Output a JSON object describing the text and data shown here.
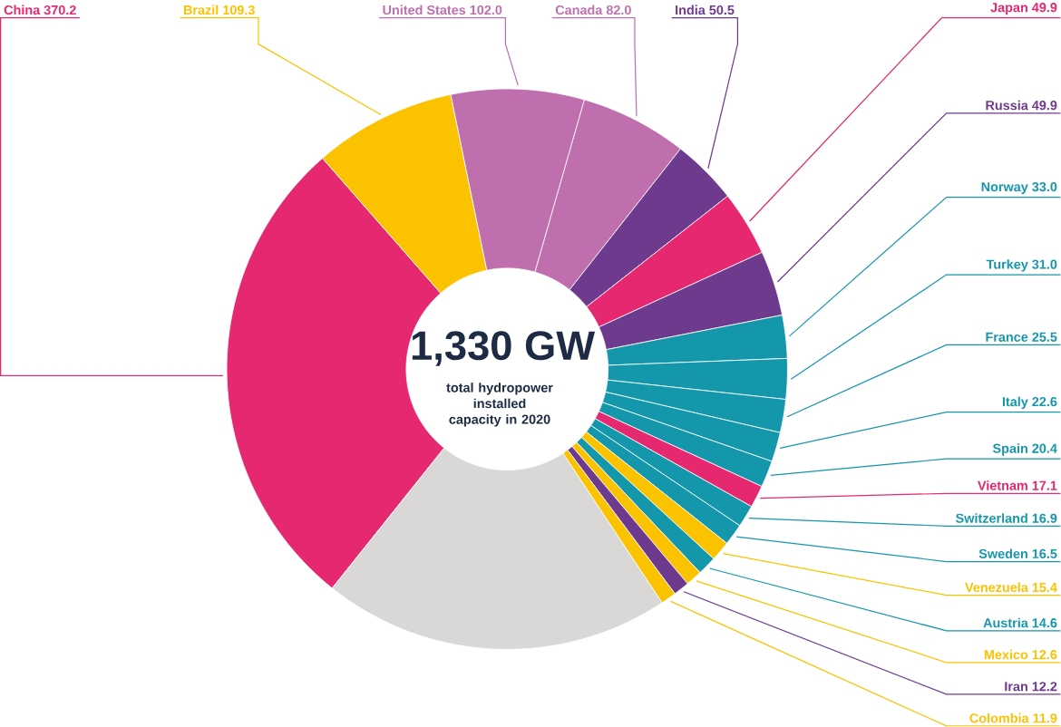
{
  "chart_data": {
    "type": "donut",
    "title": "1,330 GW",
    "subtitle": "total hydropower installed capacity in 2020",
    "categories": [
      "China",
      "Brazil",
      "United States",
      "Canada",
      "India",
      "Japan",
      "Russia",
      "Norway",
      "Turkey",
      "France",
      "Italy",
      "Spain",
      "Vietnam",
      "Switzerland",
      "Sweden",
      "Venezuela",
      "Austria",
      "Mexico",
      "Iran",
      "Colombia",
      null
    ],
    "values": [
      370.2,
      109.3,
      102.0,
      82.0,
      50.5,
      49.9,
      49.9,
      33.0,
      31.0,
      25.5,
      22.6,
      20.4,
      17.1,
      16.9,
      16.5,
      15.4,
      14.6,
      12.6,
      12.2,
      11.9,
      266.5
    ],
    "value_labels": [
      "370.2",
      "109.3",
      "102.0",
      "82.0",
      "50.5",
      "49.9",
      "49.9",
      "33.0",
      "31.0",
      "25.5",
      "22.6",
      "20.4",
      "17.1",
      "16.9",
      "16.5",
      "15.4",
      "14.6",
      "12.6",
      "12.2",
      "11.9",
      null
    ],
    "colors": [
      "#e5286f",
      "#fbc200",
      "#bf6fad",
      "#bf6fad",
      "#6e3a8e",
      "#e5286f",
      "#6e3a8e",
      "#1597ab",
      "#1597ab",
      "#1597ab",
      "#1597ab",
      "#1597ab",
      "#e5286f",
      "#1597ab",
      "#1597ab",
      "#fbc200",
      "#1597ab",
      "#fbc200",
      "#6e3a8e",
      "#fbc200",
      "#d9d8d6"
    ]
  }
}
